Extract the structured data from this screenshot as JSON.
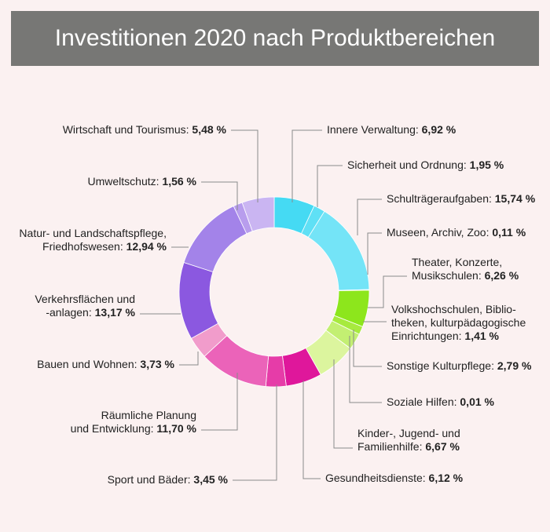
{
  "chart_data": {
    "type": "pie",
    "title": "Investitionen 2020 nach Produktbereichen",
    "categories": [
      "Innere Verwaltung:",
      "Sicherheit und Ordnung:",
      "Schulträgeraufgaben:",
      "Museen, Archiv, Zoo:",
      "Theater, Konzerte,\nMusikschulen:",
      "Volkshochschulen, Biblio-\ntheken, kulturpädagogische\nEinrichtungen:",
      "Sonstige Kulturpflege:",
      "Soziale Hilfen:",
      "Kinder-, Jugend- und\nFamilienhilfe:",
      "Gesundheitsdienste:",
      "Sport und Bäder:",
      "Räumliche Planung\nund Entwicklung:",
      "Bauen und Wohnen:",
      "Verkehrsflächen und\n-anlagen:",
      "Natur- und Landschaftspflege,\nFriedhofswesen:",
      "Umweltschutz:",
      "Wirtschaft und Tourismus:"
    ],
    "values": [
      6.92,
      1.95,
      15.74,
      0.11,
      6.26,
      1.41,
      2.79,
      0.01,
      6.67,
      6.12,
      3.45,
      11.7,
      3.73,
      13.17,
      12.94,
      1.56,
      5.48
    ],
    "value_labels": [
      "6,92 %",
      "1,95 %",
      "15,74 %",
      "0,11 %",
      "6,26 %",
      "1,41 %",
      "2,79 %",
      "0,01 %",
      "6,67 %",
      "6,12 %",
      "3,45 %",
      "11,70 %",
      "3,73 %",
      "13,17 %",
      "12,94 %",
      "1,56 %",
      "5,48 %"
    ],
    "colors": [
      "#45daf3",
      "#5fe0f5",
      "#74e4f7",
      "#a4eff8",
      "#8de61c",
      "#a7ea3e",
      "#c3ef72",
      "#d2f290",
      "#dcf59e",
      "#df179b",
      "#e63ca8",
      "#eb63b9",
      "#f19ccb",
      "#8b58e0",
      "#a383e9",
      "#b89ded",
      "#cab5f2"
    ]
  }
}
